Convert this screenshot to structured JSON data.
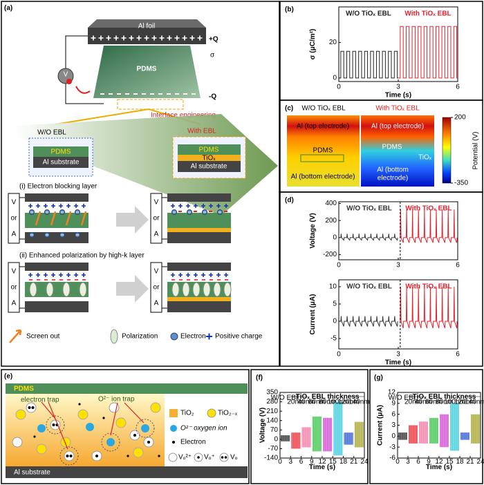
{
  "panels": {
    "a": {
      "label": "(a)",
      "al_foil": "Al foil",
      "plus_q": "+Q",
      "sigma": "σ",
      "pdms": "PDMS",
      "minus_q": "-Q",
      "meter": "V",
      "interface": "Interface engineering",
      "wo_ebl": "W/O EBL",
      "with_ebl": "With EBL",
      "wo_stack": [
        "PDMS",
        "Al substrate"
      ],
      "with_stack": [
        "PDMS",
        "TiOₓ",
        "Al substrate"
      ],
      "step1": "(i) Electron blocking layer",
      "step2": "(ii) Enhanced polarization by high-k layer",
      "meter_label": [
        "V",
        "or",
        "A"
      ],
      "legend": [
        "Screen out",
        "Polarization",
        "Electron",
        "Positive charge"
      ]
    },
    "c": {
      "label": "(c)",
      "left_title": "W/O TiOₓ EBL",
      "right_title": "With TiOₓ EBL",
      "left": [
        "Al (top electrode)",
        "PDMS",
        "Al (bottom electrode)"
      ],
      "right": [
        "Al (top electrode)",
        "PDMS",
        "TiOₓ",
        "Al (bottom",
        "electrode)"
      ],
      "colorbar": {
        "label": "Potential (V)",
        "lim": [
          -350,
          200
        ],
        "ticks": [
          200,
          -350
        ]
      }
    },
    "e": {
      "label": "(e)",
      "pdms": "PDMS",
      "electron_trap": "electron trap",
      "ion_trap": "O²⁻ ion trap",
      "substrate": "Al substrate",
      "legend": {
        "tio2": "TiO₂",
        "tio2x": "TiO₂₋ₓ",
        "oxygen": "O²⁻ oxygen ion",
        "electron": "Electron",
        "vacancies": [
          "Vₒ²⁺",
          "Vₒ⁺",
          "Vₒ"
        ]
      }
    }
  },
  "chart_data": [
    {
      "type": "line",
      "panel": "(b)",
      "xlabel": "Time (s)",
      "ylabel": "σ (μC/m²)",
      "xlim": [
        0,
        6
      ],
      "xticks": [
        0,
        3,
        6
      ],
      "ylim": [
        -2,
        40
      ],
      "yticks": [
        0,
        20
      ],
      "series": [
        {
          "name": "W/O TiOₓ EBL",
          "color": "#222222",
          "x": [
            0,
            0.1,
            0.1,
            0.25,
            0.25,
            0.4,
            0.4,
            0.55,
            0.55,
            0.7,
            0.7,
            0.85,
            0.85,
            1,
            1,
            1.15,
            1.15,
            1.3,
            1.3,
            1.45,
            1.45,
            1.6,
            1.6,
            1.75,
            1.75,
            1.9,
            1.9,
            2.05,
            2.05,
            2.2,
            2.2,
            2.35,
            2.35,
            2.5,
            2.5,
            2.65,
            2.65,
            2.8,
            2.8,
            2.95,
            2.95,
            3
          ],
          "values": [
            0,
            0,
            15,
            15,
            0,
            0,
            15,
            15,
            0,
            0,
            15,
            15,
            0,
            0,
            15,
            15,
            0,
            0,
            15,
            15,
            0,
            0,
            15,
            15,
            0,
            0,
            15,
            15,
            0,
            0,
            15,
            15,
            0,
            0,
            15,
            15,
            0,
            0,
            15,
            15,
            0,
            0
          ]
        },
        {
          "name": "With TiOₓ EBL",
          "color": "#e8202a",
          "x": [
            3,
            3.1,
            3.1,
            3.25,
            3.25,
            3.4,
            3.4,
            3.55,
            3.55,
            3.7,
            3.7,
            3.85,
            3.85,
            4,
            4,
            4.15,
            4.15,
            4.3,
            4.3,
            4.45,
            4.45,
            4.6,
            4.6,
            4.75,
            4.75,
            4.9,
            4.9,
            5.05,
            5.05,
            5.2,
            5.2,
            5.35,
            5.35,
            5.5,
            5.5,
            5.65,
            5.65,
            5.8,
            5.8,
            5.95,
            5.95,
            6
          ],
          "values": [
            0,
            0,
            29,
            29,
            0,
            0,
            29,
            29,
            0,
            0,
            29,
            29,
            0,
            0,
            29,
            29,
            0,
            0,
            29,
            29,
            0,
            0,
            29,
            29,
            0,
            0,
            29,
            29,
            0,
            0,
            29,
            29,
            0,
            0,
            29,
            29,
            0,
            0,
            29,
            29,
            0,
            0
          ]
        }
      ]
    },
    {
      "type": "line",
      "panel": "(d)",
      "ylabel": "Voltage (V)",
      "xlim": [
        0,
        6
      ],
      "xticks": [
        0,
        3,
        6
      ],
      "ylim": [
        -260,
        420
      ],
      "yticks": [
        -200,
        0,
        200,
        400
      ],
      "divider": true,
      "series": [
        {
          "name": "W/O TiOₓ EBL",
          "color": "#333333",
          "x": [
            0.1,
            0.12,
            0.14,
            0.25,
            0.27,
            0.4,
            0.42,
            0.44,
            0.55,
            0.57,
            0.7,
            0.72,
            0.74,
            0.85,
            0.87,
            1,
            1.02,
            1.04,
            1.15,
            1.17,
            1.3,
            1.32,
            1.34,
            1.45,
            1.47,
            1.6,
            1.62,
            1.64,
            1.75,
            1.77,
            1.9,
            1.92,
            1.94,
            2.05,
            2.07,
            2.2,
            2.22,
            2.24,
            2.35,
            2.37,
            2.5,
            2.52,
            2.54,
            2.65,
            2.67,
            2.8,
            2.82,
            2.84,
            2.95,
            2.97
          ],
          "values": [
            0,
            45,
            0,
            -30,
            0,
            0,
            45,
            0,
            -30,
            0,
            0,
            45,
            0,
            -30,
            0,
            0,
            45,
            0,
            -30,
            0,
            0,
            45,
            0,
            -30,
            0,
            0,
            45,
            0,
            -30,
            0,
            0,
            45,
            0,
            -30,
            0,
            0,
            45,
            0,
            -30,
            0,
            0,
            45,
            0,
            -30,
            0,
            0,
            45,
            0,
            -30,
            0
          ]
        },
        {
          "name": "With TiOₓ EBL",
          "color": "#e8202a",
          "x": [
            3.1,
            3.12,
            3.14,
            3.25,
            3.27,
            3.4,
            3.42,
            3.44,
            3.55,
            3.57,
            3.7,
            3.72,
            3.74,
            3.85,
            3.87,
            4,
            4.02,
            4.04,
            4.15,
            4.17,
            4.3,
            4.32,
            4.34,
            4.45,
            4.47,
            4.6,
            4.62,
            4.64,
            4.75,
            4.77,
            4.9,
            4.92,
            4.94,
            5.05,
            5.07,
            5.2,
            5.22,
            5.24,
            5.35,
            5.37,
            5.5,
            5.52,
            5.54,
            5.65,
            5.67,
            5.8,
            5.82,
            5.84,
            5.95,
            5.97
          ],
          "values": [
            0,
            330,
            0,
            -60,
            0,
            0,
            330,
            0,
            -60,
            0,
            0,
            330,
            0,
            -60,
            0,
            0,
            330,
            0,
            -60,
            0,
            0,
            330,
            0,
            -60,
            0,
            0,
            330,
            0,
            -60,
            0,
            0,
            330,
            0,
            -60,
            0,
            0,
            330,
            0,
            -60,
            0,
            0,
            330,
            0,
            -60,
            0,
            0,
            330,
            0,
            -60,
            0
          ]
        }
      ]
    },
    {
      "type": "line",
      "xlabel": "Time (s)",
      "ylabel": "Current (μA)",
      "xlim": [
        0,
        6
      ],
      "xticks": [
        0,
        3,
        6
      ],
      "ylim": [
        -8,
        12
      ],
      "yticks": [
        -5,
        0,
        5,
        10
      ],
      "divider": true,
      "series": [
        {
          "name": "W/O TiOₓ EBL",
          "color": "#333333",
          "x": [
            0.1,
            0.12,
            0.14,
            0.25,
            0.27,
            0.4,
            0.42,
            0.44,
            0.55,
            0.57,
            0.7,
            0.72,
            0.74,
            0.85,
            0.87,
            1,
            1.02,
            1.04,
            1.15,
            1.17,
            1.3,
            1.32,
            1.34,
            1.45,
            1.47,
            1.6,
            1.62,
            1.64,
            1.75,
            1.77,
            1.9,
            1.92,
            1.94,
            2.05,
            2.07,
            2.2,
            2.22,
            2.24,
            2.35,
            2.37,
            2.5,
            2.52,
            2.54,
            2.65,
            2.67,
            2.8,
            2.82,
            2.84,
            2.95,
            2.97
          ],
          "values": [
            0,
            1.5,
            0,
            -1.5,
            0,
            0,
            1.5,
            0,
            -1.5,
            0,
            0,
            1.5,
            0,
            -1.5,
            0,
            0,
            1.5,
            0,
            -1.5,
            0,
            0,
            1.5,
            0,
            -1.5,
            0,
            0,
            1.5,
            0,
            -1.5,
            0,
            0,
            1.5,
            0,
            -1.5,
            0,
            0,
            1.5,
            0,
            -1.5,
            0,
            0,
            1.5,
            0,
            -1.5,
            0,
            0,
            1.5,
            0,
            -1.5,
            0
          ]
        },
        {
          "name": "With TiOₓ EBL",
          "color": "#e8202a",
          "x": [
            3.1,
            3.12,
            3.14,
            3.25,
            3.27,
            3.4,
            3.42,
            3.44,
            3.55,
            3.57,
            3.7,
            3.72,
            3.74,
            3.85,
            3.87,
            4,
            4.02,
            4.04,
            4.15,
            4.17,
            4.3,
            4.32,
            4.34,
            4.45,
            4.47,
            4.6,
            4.62,
            4.64,
            4.75,
            4.77,
            4.9,
            4.92,
            4.94,
            5.05,
            5.07,
            5.2,
            5.22,
            5.24,
            5.35,
            5.37,
            5.5,
            5.52,
            5.54,
            5.65,
            5.67,
            5.8,
            5.82,
            5.84,
            5.95,
            5.97
          ],
          "values": [
            0,
            10,
            0,
            -2,
            0,
            0,
            10,
            0,
            -2,
            0,
            0,
            10,
            0,
            -2,
            0,
            0,
            10,
            0,
            -2,
            0,
            0,
            10,
            0,
            -2,
            0,
            0,
            10,
            0,
            -2,
            0,
            0,
            10,
            0,
            -2,
            0,
            0,
            10,
            0,
            -2,
            0,
            0,
            10,
            0,
            -2,
            0,
            0,
            10,
            0,
            -2,
            0
          ]
        }
      ]
    },
    {
      "type": "band",
      "panel": "(f)",
      "xlabel": "Time (s)",
      "ylabel": "Voltage (V)",
      "annotation": "TiOₓ EBL thickness",
      "xlim": [
        0,
        24
      ],
      "xticks": [
        0,
        3,
        6,
        9,
        12,
        15,
        18,
        21,
        24
      ],
      "ylim": [
        -140,
        350
      ],
      "yticks": [
        -140,
        -70,
        0,
        70,
        140,
        210,
        280,
        350
      ],
      "groups": [
        {
          "name": "W/O EBL",
          "color": "#222222",
          "x": [
            0,
            3
          ],
          "high": 30,
          "low": -15
        },
        {
          "name": "20nm",
          "color": "#e8202a",
          "x": [
            3,
            6
          ],
          "high": 50,
          "low": -70
        },
        {
          "name": "40nm",
          "color": "#f070a0",
          "x": [
            6,
            9
          ],
          "high": 90,
          "low": -60
        },
        {
          "name": "60nm",
          "color": "#30c040",
          "x": [
            9,
            12
          ],
          "high": 170,
          "low": -90
        },
        {
          "name": "80nm",
          "color": "#d040d0",
          "x": [
            12,
            15
          ],
          "high": 160,
          "low": -90
        },
        {
          "name": "100nm",
          "color": "#30c8d8",
          "x": [
            15,
            18
          ],
          "high": 280,
          "low": -120
        },
        {
          "name": "120nm",
          "color": "#2050d0",
          "x": [
            18,
            21
          ],
          "high": 50,
          "low": -40
        },
        {
          "name": "140nm",
          "color": "#a0a020",
          "x": [
            21,
            24
          ],
          "high": 130,
          "low": -60
        }
      ]
    },
    {
      "type": "band",
      "panel": "(g)",
      "xlabel": "Time (s)",
      "ylabel": "Current (μA)",
      "annotation": "TiOₓ EBL thickness",
      "xlim": [
        0,
        24
      ],
      "xticks": [
        0,
        3,
        6,
        9,
        12,
        15,
        18,
        21,
        24
      ],
      "ylim": [
        -6,
        12
      ],
      "yticks": [
        -6,
        -3,
        0,
        3,
        6,
        9,
        12
      ],
      "groups": [
        {
          "name": "W/O EBL",
          "color": "#222222",
          "x": [
            0,
            3
          ],
          "high": 1,
          "low": -1
        },
        {
          "name": "20nm",
          "color": "#e8202a",
          "x": [
            3,
            6
          ],
          "high": 3,
          "low": -2
        },
        {
          "name": "40nm",
          "color": "#f070a0",
          "x": [
            6,
            9
          ],
          "high": 4,
          "low": -2
        },
        {
          "name": "60nm",
          "color": "#30c040",
          "x": [
            9,
            12
          ],
          "high": 5,
          "low": -2
        },
        {
          "name": "80nm",
          "color": "#d040d0",
          "x": [
            12,
            15
          ],
          "high": 6,
          "low": -3
        },
        {
          "name": "100nm",
          "color": "#30c8d8",
          "x": [
            15,
            18
          ],
          "high": 9,
          "low": -4
        },
        {
          "name": "120nm",
          "color": "#2050d0",
          "x": [
            18,
            21
          ],
          "high": 1,
          "low": -1
        },
        {
          "name": "140nm",
          "color": "#a0a020",
          "x": [
            21,
            24
          ],
          "high": 6,
          "low": -2
        }
      ]
    }
  ]
}
